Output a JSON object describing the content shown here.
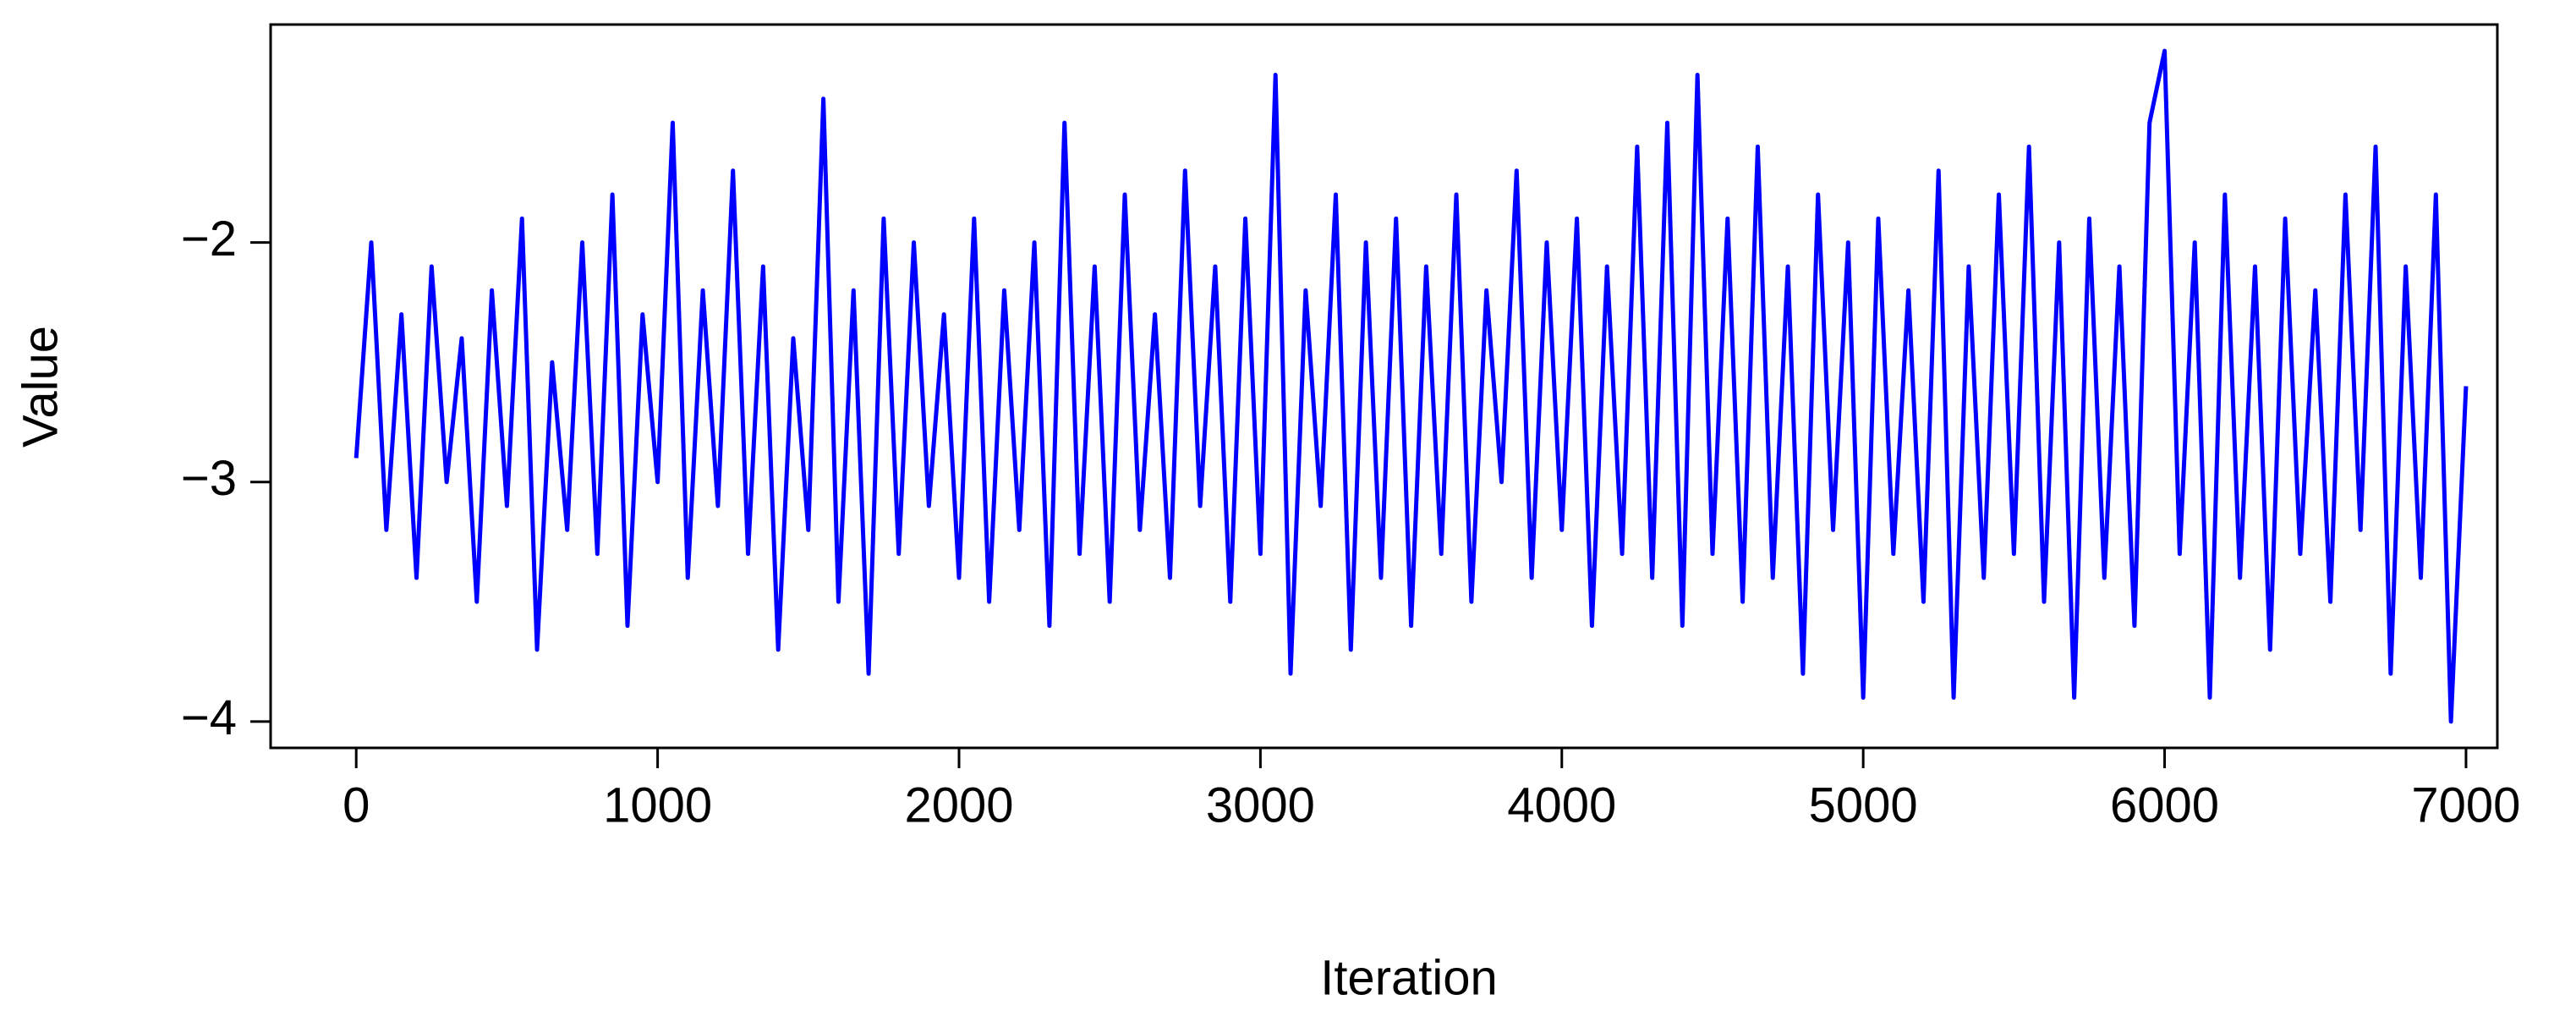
{
  "chart_data": {
    "type": "line",
    "xlabel": "Iteration",
    "ylabel": "Value",
    "x": [
      0,
      50,
      100,
      150,
      200,
      250,
      300,
      350,
      400,
      450,
      500,
      550,
      600,
      650,
      700,
      750,
      800,
      850,
      900,
      950,
      1000,
      1050,
      1100,
      1150,
      1200,
      1250,
      1300,
      1350,
      1400,
      1450,
      1500,
      1550,
      1600,
      1650,
      1700,
      1750,
      1800,
      1850,
      1900,
      1950,
      2000,
      2050,
      2100,
      2150,
      2200,
      2250,
      2300,
      2350,
      2400,
      2450,
      2500,
      2550,
      2600,
      2650,
      2700,
      2750,
      2800,
      2850,
      2900,
      2950,
      3000,
      3050,
      3100,
      3150,
      3200,
      3250,
      3300,
      3350,
      3400,
      3450,
      3500,
      3550,
      3600,
      3650,
      3700,
      3750,
      3800,
      3850,
      3900,
      3950,
      4000,
      4050,
      4100,
      4150,
      4200,
      4250,
      4300,
      4350,
      4400,
      4450,
      4500,
      4550,
      4600,
      4650,
      4700,
      4750,
      4800,
      4850,
      4900,
      4950,
      5000,
      5050,
      5100,
      5150,
      5200,
      5250,
      5300,
      5350,
      5400,
      5450,
      5500,
      5550,
      5600,
      5650,
      5700,
      5750,
      5800,
      5850,
      5900,
      5950,
      6000,
      6050,
      6100,
      6150,
      6200,
      6250,
      6300,
      6350,
      6400,
      6450,
      6500,
      6550,
      6600,
      6650,
      6700,
      6750,
      6800,
      6850,
      6900,
      6950,
      7000
    ],
    "series": [
      {
        "color": "#0000ff",
        "values": [
          -2.9,
          -2.0,
          -3.2,
          -2.3,
          -3.4,
          -2.1,
          -3.0,
          -2.4,
          -3.5,
          -2.2,
          -3.1,
          -1.9,
          -3.7,
          -2.5,
          -3.2,
          -2.0,
          -3.3,
          -1.8,
          -3.6,
          -2.3,
          -3.0,
          -1.5,
          -3.4,
          -2.2,
          -3.1,
          -1.7,
          -3.3,
          -2.1,
          -3.7,
          -2.4,
          -3.2,
          -1.4,
          -3.5,
          -2.2,
          -3.8,
          -1.9,
          -3.3,
          -2.0,
          -3.1,
          -2.3,
          -3.4,
          -1.9,
          -3.5,
          -2.2,
          -3.2,
          -2.0,
          -3.6,
          -1.5,
          -3.3,
          -2.1,
          -3.5,
          -1.8,
          -3.2,
          -2.3,
          -3.4,
          -1.7,
          -3.1,
          -2.1,
          -3.5,
          -1.9,
          -3.3,
          -1.3,
          -3.8,
          -2.2,
          -3.1,
          -1.8,
          -3.7,
          -2.0,
          -3.4,
          -1.9,
          -3.6,
          -2.1,
          -3.3,
          -1.8,
          -3.5,
          -2.2,
          -3.0,
          -1.7,
          -3.4,
          -2.0,
          -3.2,
          -1.9,
          -3.6,
          -2.1,
          -3.3,
          -1.6,
          -3.4,
          -1.5,
          -3.6,
          -1.3,
          -3.3,
          -1.9,
          -3.5,
          -1.6,
          -3.4,
          -2.1,
          -3.8,
          -1.8,
          -3.2,
          -2.0,
          -3.9,
          -1.9,
          -3.3,
          -2.2,
          -3.5,
          -1.7,
          -3.9,
          -2.1,
          -3.4,
          -1.8,
          -3.3,
          -1.6,
          -3.5,
          -2.0,
          -3.9,
          -1.9,
          -3.4,
          -2.1,
          -3.6,
          -1.5,
          -1.2,
          -3.3,
          -2.0,
          -3.9,
          -1.8,
          -3.4,
          -2.1,
          -3.7,
          -1.9,
          -3.3,
          -2.2,
          -3.5,
          -1.8,
          -3.2,
          -1.6,
          -3.8,
          -2.1,
          -3.4,
          -1.8,
          -4.0,
          -2.6
        ]
      }
    ],
    "xlim": [
      -284,
      7104
    ],
    "ylim": [
      -4.11,
      -1.09
    ],
    "xticks": [
      0,
      1000,
      2000,
      3000,
      4000,
      5000,
      6000,
      7000
    ],
    "yticks": [
      {
        "value": -2,
        "label": "−2"
      },
      {
        "value": -3,
        "label": "−3"
      },
      {
        "value": -4,
        "label": "−4"
      }
    ],
    "grid": false
  }
}
